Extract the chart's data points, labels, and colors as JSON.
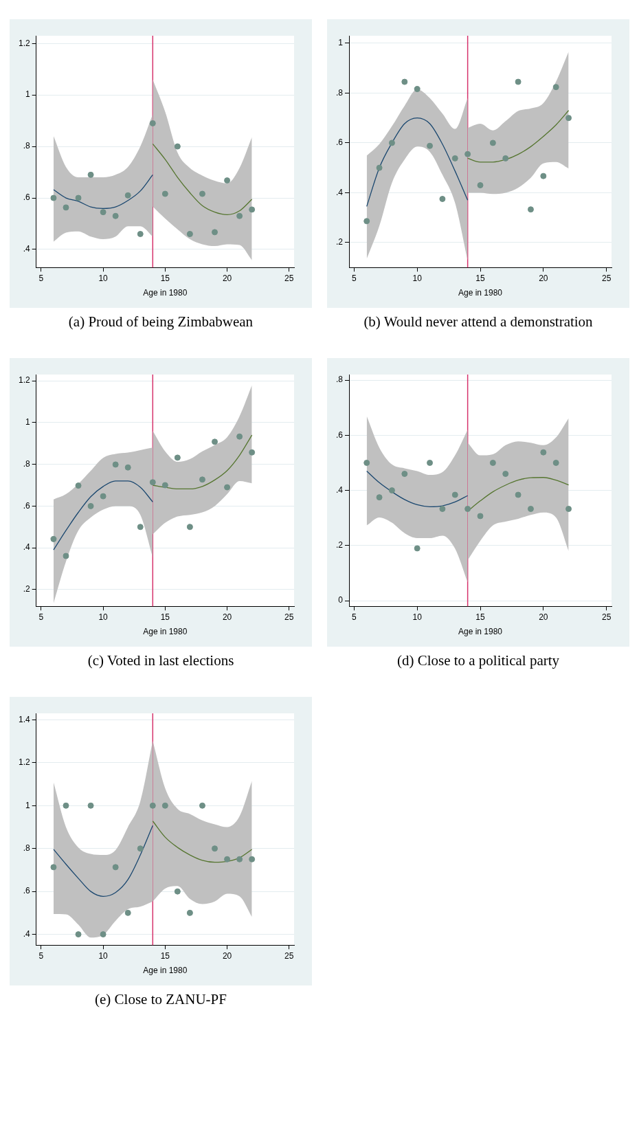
{
  "chart_data": [
    {
      "type": "scatter",
      "title": "(a) Proud of being Zimbabwean",
      "xlabel": "Age in 1980",
      "xlim": [
        4.6,
        25.4
      ],
      "xticks": [
        5,
        10,
        15,
        20,
        25
      ],
      "ylim": [
        0.33,
        1.23
      ],
      "yticks": [
        {
          "value": 0.4,
          "label": ".4"
        },
        {
          "value": 0.6,
          "label": ".6"
        },
        {
          "value": 0.8,
          "label": ".8"
        },
        {
          "value": 1,
          "label": "1"
        },
        {
          "value": 1.2,
          "label": "1.2"
        }
      ],
      "grid": "y",
      "line_style": "solid",
      "ref_lines": [
        {
          "axis": "x",
          "value": 14,
          "color": "#d6336c"
        }
      ],
      "series": [
        {
          "marker": "circle",
          "color": "#6e8f86",
          "x": [
            6,
            7,
            8,
            9,
            10,
            11,
            12,
            13,
            14,
            15,
            16,
            17,
            18,
            19,
            20,
            21,
            22
          ],
          "values": [
            0.6,
            0.563,
            0.6,
            0.69,
            0.545,
            0.53,
            0.61,
            0.46,
            0.89,
            0.616,
            0.8,
            0.46,
            0.616,
            0.467,
            0.668,
            0.53,
            0.555
          ]
        },
        {
          "type": "line",
          "color": "#1a476f",
          "x": [
            6,
            7,
            8,
            9,
            10,
            11,
            12,
            13,
            14
          ],
          "values": [
            0.632,
            0.6,
            0.587,
            0.565,
            0.559,
            0.565,
            0.59,
            0.627,
            0.69
          ],
          "lower": [
            0.43,
            0.465,
            0.47,
            0.45,
            0.44,
            0.45,
            0.49,
            0.49,
            0.45
          ],
          "upper": [
            0.84,
            0.72,
            0.68,
            0.68,
            0.68,
            0.69,
            0.72,
            0.8,
            0.925
          ]
        },
        {
          "type": "line",
          "color": "#55752f",
          "x": [
            14,
            15,
            16,
            17,
            18,
            19,
            20,
            21,
            22
          ],
          "values": [
            0.81,
            0.75,
            0.68,
            0.62,
            0.57,
            0.545,
            0.535,
            0.55,
            0.595
          ],
          "lower": [
            0.567,
            0.52,
            0.478,
            0.44,
            0.42,
            0.413,
            0.42,
            0.417,
            0.358
          ],
          "upper": [
            1.06,
            0.935,
            0.776,
            0.716,
            0.687,
            0.667,
            0.657,
            0.716,
            0.836
          ]
        }
      ]
    },
    {
      "type": "scatter",
      "title": "(b) Would never attend a demonstration",
      "xlabel": "Age in 1980",
      "xlim": [
        4.6,
        25.4
      ],
      "xticks": [
        5,
        10,
        15,
        20,
        25
      ],
      "ylim": [
        0.1,
        1.03
      ],
      "yticks": [
        {
          "value": 0.2,
          "label": ".2"
        },
        {
          "value": 0.4,
          "label": ".4"
        },
        {
          "value": 0.6,
          "label": ".6"
        },
        {
          "value": 0.8,
          "label": ".8"
        },
        {
          "value": 1,
          "label": "1"
        }
      ],
      "grid": "y",
      "line_style": "solid",
      "ref_lines": [
        {
          "axis": "x",
          "value": 14,
          "color": "#d6336c"
        }
      ],
      "series": [
        {
          "marker": "circle",
          "color": "#6e8f86",
          "x": [
            6,
            7,
            8,
            9,
            10,
            11,
            12,
            13,
            14,
            15,
            16,
            17,
            18,
            19,
            20,
            21,
            22
          ],
          "values": [
            0.286,
            0.5,
            0.6,
            0.845,
            0.816,
            0.588,
            0.375,
            0.538,
            0.555,
            0.43,
            0.6,
            0.538,
            0.845,
            0.333,
            0.467,
            0.824,
            0.7
          ]
        },
        {
          "type": "line",
          "color": "#1a476f",
          "x": [
            6,
            7,
            8,
            9,
            10,
            11,
            12,
            13,
            14
          ],
          "values": [
            0.345,
            0.5,
            0.6,
            0.677,
            0.7,
            0.677,
            0.595,
            0.487,
            0.37
          ],
          "lower": [
            0.135,
            0.267,
            0.44,
            0.533,
            0.585,
            0.564,
            0.472,
            0.359,
            0.128
          ],
          "upper": [
            0.549,
            0.595,
            0.667,
            0.749,
            0.815,
            0.78,
            0.718,
            0.656,
            0.78
          ]
        },
        {
          "type": "line",
          "color": "#55752f",
          "x": [
            14,
            15,
            16,
            17,
            18,
            19,
            20,
            21,
            22
          ],
          "values": [
            0.538,
            0.523,
            0.523,
            0.533,
            0.554,
            0.585,
            0.626,
            0.672,
            0.73
          ],
          "lower": [
            0.4,
            0.4,
            0.395,
            0.4,
            0.42,
            0.46,
            0.518,
            0.523,
            0.497
          ],
          "upper": [
            0.66,
            0.677,
            0.65,
            0.687,
            0.728,
            0.738,
            0.76,
            0.846,
            0.966
          ]
        }
      ]
    },
    {
      "type": "scatter",
      "title": "(c) Voted in last elections",
      "xlabel": "Age in 1980",
      "xlim": [
        4.6,
        25.4
      ],
      "xticks": [
        5,
        10,
        15,
        20,
        25
      ],
      "ylim": [
        0.12,
        1.23
      ],
      "yticks": [
        {
          "value": 0.2,
          "label": ".2"
        },
        {
          "value": 0.4,
          "label": ".4"
        },
        {
          "value": 0.6,
          "label": ".6"
        },
        {
          "value": 0.8,
          "label": ".8"
        },
        {
          "value": 1,
          "label": "1"
        },
        {
          "value": 1.2,
          "label": "1.2"
        }
      ],
      "grid": "y",
      "line_style": "solid",
      "ref_lines": [
        {
          "axis": "x",
          "value": 14,
          "color": "#d6336c"
        }
      ],
      "series": [
        {
          "marker": "circle",
          "color": "#6e8f86",
          "x": [
            6,
            7,
            8,
            9,
            10,
            11,
            12,
            13,
            14,
            15,
            16,
            17,
            18,
            19,
            20,
            21,
            22
          ],
          "values": [
            0.442,
            0.361,
            0.698,
            0.6,
            0.647,
            0.799,
            0.785,
            0.5,
            0.714,
            0.7,
            0.832,
            0.5,
            0.727,
            0.908,
            0.69,
            0.933,
            0.857
          ]
        },
        {
          "type": "line",
          "color": "#1a476f",
          "x": [
            6,
            7,
            8,
            9,
            10,
            11,
            12,
            13,
            14
          ],
          "values": [
            0.39,
            0.483,
            0.57,
            0.645,
            0.694,
            0.72,
            0.72,
            0.69,
            0.62
          ],
          "lower": [
            0.135,
            0.334,
            0.483,
            0.545,
            0.583,
            0.6,
            0.6,
            0.558,
            0.353
          ],
          "upper": [
            0.632,
            0.657,
            0.707,
            0.769,
            0.831,
            0.85,
            0.856,
            0.868,
            0.88
          ]
        },
        {
          "type": "line",
          "color": "#55752f",
          "x": [
            14,
            15,
            16,
            17,
            18,
            19,
            20,
            21,
            22
          ],
          "values": [
            0.7,
            0.69,
            0.682,
            0.682,
            0.694,
            0.725,
            0.77,
            0.843,
            0.94
          ],
          "lower": [
            0.465,
            0.52,
            0.55,
            0.558,
            0.57,
            0.6,
            0.657,
            0.72,
            0.709
          ],
          "upper": [
            0.96,
            0.862,
            0.812,
            0.825,
            0.862,
            0.893,
            0.93,
            1.03,
            1.179
          ]
        }
      ]
    },
    {
      "type": "scatter",
      "title": "(d) Close to a political party",
      "xlabel": "Age in 1980",
      "xlim": [
        4.6,
        25.4
      ],
      "xticks": [
        5,
        10,
        15,
        20,
        25
      ],
      "ylim": [
        -0.02,
        0.82
      ],
      "yticks": [
        {
          "value": 0,
          "label": "0"
        },
        {
          "value": 0.2,
          "label": ".2"
        },
        {
          "value": 0.4,
          "label": ".4"
        },
        {
          "value": 0.6,
          "label": ".6"
        },
        {
          "value": 0.8,
          "label": ".8"
        }
      ],
      "grid": "y",
      "line_style": "solid",
      "ref_lines": [
        {
          "axis": "x",
          "value": 14,
          "color": "#d6336c"
        }
      ],
      "series": [
        {
          "marker": "circle",
          "color": "#6e8f86",
          "x": [
            6,
            7,
            8,
            9,
            10,
            11,
            12,
            13,
            14,
            15,
            16,
            17,
            18,
            19,
            20,
            21,
            22
          ],
          "values": [
            0.5,
            0.375,
            0.4,
            0.46,
            0.19,
            0.5,
            0.333,
            0.384,
            0.333,
            0.307,
            0.5,
            0.46,
            0.384,
            0.333,
            0.538,
            0.5,
            0.333
          ]
        },
        {
          "type": "line",
          "color": "#1a476f",
          "x": [
            6,
            7,
            8,
            9,
            10,
            11,
            12,
            13,
            14
          ],
          "values": [
            0.47,
            0.428,
            0.395,
            0.367,
            0.348,
            0.341,
            0.344,
            0.358,
            0.381
          ],
          "lower": [
            0.273,
            0.302,
            0.283,
            0.245,
            0.227,
            0.227,
            0.236,
            0.189,
            0.067
          ],
          "upper": [
            0.669,
            0.555,
            0.494,
            0.48,
            0.47,
            0.456,
            0.466,
            0.527,
            0.62
          ]
        },
        {
          "type": "line",
          "color": "#55752f",
          "x": [
            14,
            15,
            16,
            17,
            18,
            19,
            20,
            21,
            22
          ],
          "values": [
            0.325,
            0.362,
            0.395,
            0.419,
            0.437,
            0.446,
            0.447,
            0.437,
            0.42
          ],
          "lower": [
            0.147,
            0.217,
            0.273,
            0.287,
            0.297,
            0.311,
            0.32,
            0.302,
            0.18
          ],
          "upper": [
            0.573,
            0.527,
            0.531,
            0.564,
            0.578,
            0.573,
            0.564,
            0.592,
            0.662
          ]
        }
      ]
    },
    {
      "type": "scatter",
      "title": "(e) Close to ZANU-PF",
      "xlabel": "Age in 1980",
      "xlim": [
        4.6,
        25.4
      ],
      "xticks": [
        5,
        10,
        15,
        20,
        25
      ],
      "ylim": [
        0.35,
        1.43
      ],
      "yticks": [
        {
          "value": 0.4,
          "label": ".4"
        },
        {
          "value": 0.6,
          "label": ".6"
        },
        {
          "value": 0.8,
          "label": ".8"
        },
        {
          "value": 1,
          "label": "1"
        },
        {
          "value": 1.2,
          "label": "1.2"
        },
        {
          "value": 1.4,
          "label": "1.4"
        }
      ],
      "grid": "y",
      "line_style": "solid",
      "ref_lines": [
        {
          "axis": "x",
          "value": 14,
          "color": "#d6336c"
        }
      ],
      "series": [
        {
          "marker": "circle",
          "color": "#6e8f86",
          "x": [
            6,
            7,
            8,
            9,
            10,
            11,
            12,
            13,
            14,
            15,
            16,
            17,
            18,
            19,
            20,
            21,
            22
          ],
          "values": [
            0.713,
            1,
            0.4,
            1,
            0.4,
            0.713,
            0.5,
            0.8,
            1,
            1,
            0.6,
            0.5,
            1,
            0.8,
            0.75,
            0.75,
            0.75
          ]
        },
        {
          "type": "line",
          "color": "#1a476f",
          "x": [
            6,
            7,
            8,
            9,
            10,
            11,
            12,
            13,
            14
          ],
          "values": [
            0.796,
            0.727,
            0.661,
            0.6,
            0.577,
            0.595,
            0.655,
            0.77,
            0.907
          ],
          "lower": [
            0.495,
            0.493,
            0.445,
            0.385,
            0.397,
            0.463,
            0.517,
            0.529,
            0.553
          ],
          "upper": [
            1.108,
            0.9,
            0.805,
            0.775,
            0.77,
            0.793,
            0.9,
            1.02,
            1.303
          ]
        },
        {
          "type": "line",
          "color": "#55752f",
          "x": [
            14,
            15,
            16,
            17,
            18,
            19,
            20,
            21,
            22
          ],
          "values": [
            0.928,
            0.853,
            0.805,
            0.77,
            0.745,
            0.736,
            0.74,
            0.757,
            0.796
          ],
          "lower": [
            0.553,
            0.613,
            0.625,
            0.565,
            0.541,
            0.553,
            0.589,
            0.577,
            0.481
          ],
          "upper": [
            1.303,
            1.081,
            0.985,
            0.961,
            0.931,
            0.913,
            0.9,
            0.95,
            1.115
          ]
        }
      ]
    }
  ]
}
